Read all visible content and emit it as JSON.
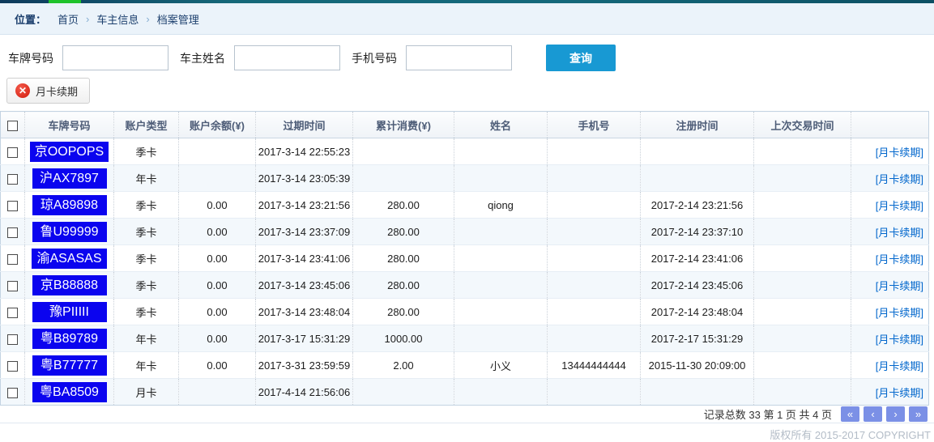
{
  "breadcrumb": {
    "label": "位置：",
    "separator": "›",
    "items": [
      "首页",
      "车主信息",
      "档案管理"
    ]
  },
  "search": {
    "fields": [
      {
        "label": "车牌号码",
        "value": ""
      },
      {
        "label": "车主姓名",
        "value": ""
      },
      {
        "label": "手机号码",
        "value": ""
      }
    ],
    "query_button": "查询"
  },
  "toolbar": {
    "renew_button": "月卡续期",
    "renew_icon": "x-in-red-circle"
  },
  "table": {
    "headers": [
      "车牌号码",
      "账户类型",
      "账户余额(¥)",
      "过期时间",
      "累计消费(¥)",
      "姓名",
      "手机号",
      "注册时间",
      "上次交易时间"
    ],
    "action_label": "[月卡续期]",
    "rows": [
      {
        "plate": "京OOPOPS",
        "type": "季卡",
        "balance": "",
        "expire": "2017-3-14 22:55:23",
        "consumed": "",
        "name": "",
        "phone": "",
        "registered": "",
        "last_trade": ""
      },
      {
        "plate": "沪AX7897",
        "type": "年卡",
        "balance": "",
        "expire": "2017-3-14 23:05:39",
        "consumed": "",
        "name": "",
        "phone": "",
        "registered": "",
        "last_trade": ""
      },
      {
        "plate": "琼A89898",
        "type": "季卡",
        "balance": "0.00",
        "expire": "2017-3-14 23:21:56",
        "consumed": "280.00",
        "name": "qiong",
        "phone": "",
        "registered": "2017-2-14 23:21:56",
        "last_trade": ""
      },
      {
        "plate": "鲁U99999",
        "type": "季卡",
        "balance": "0.00",
        "expire": "2017-3-14 23:37:09",
        "consumed": "280.00",
        "name": "",
        "phone": "",
        "registered": "2017-2-14 23:37:10",
        "last_trade": ""
      },
      {
        "plate": "渝ASASAS",
        "type": "季卡",
        "balance": "0.00",
        "expire": "2017-3-14 23:41:06",
        "consumed": "280.00",
        "name": "",
        "phone": "",
        "registered": "2017-2-14 23:41:06",
        "last_trade": ""
      },
      {
        "plate": "京B88888",
        "type": "季卡",
        "balance": "0.00",
        "expire": "2017-3-14 23:45:06",
        "consumed": "280.00",
        "name": "",
        "phone": "",
        "registered": "2017-2-14 23:45:06",
        "last_trade": ""
      },
      {
        "plate": "豫PIIIII",
        "type": "季卡",
        "balance": "0.00",
        "expire": "2017-3-14 23:48:04",
        "consumed": "280.00",
        "name": "",
        "phone": "",
        "registered": "2017-2-14 23:48:04",
        "last_trade": ""
      },
      {
        "plate": "粤B89789",
        "type": "年卡",
        "balance": "0.00",
        "expire": "2017-3-17 15:31:29",
        "consumed": "1000.00",
        "name": "",
        "phone": "",
        "registered": "2017-2-17 15:31:29",
        "last_trade": ""
      },
      {
        "plate": "粤B77777",
        "type": "年卡",
        "balance": "0.00",
        "expire": "2017-3-31 23:59:59",
        "consumed": "2.00",
        "name": "小义",
        "phone": "13444444444",
        "registered": "2015-11-30 20:09:00",
        "last_trade": ""
      },
      {
        "plate": "粤BA8509",
        "type": "月卡",
        "balance": "",
        "expire": "2017-4-14 21:56:06",
        "consumed": "",
        "name": "",
        "phone": "",
        "registered": "",
        "last_trade": ""
      }
    ]
  },
  "pagination": {
    "summary": "记录总数 33 第 1 页 共 4 页",
    "buttons": [
      {
        "name": "first",
        "glyph": "«"
      },
      {
        "name": "prev",
        "glyph": "‹"
      },
      {
        "name": "next",
        "glyph": "›"
      },
      {
        "name": "last",
        "glyph": "»"
      }
    ]
  },
  "footer": {
    "copyright": "版权所有 2015-2017 COPYRIGHT"
  },
  "colors": {
    "plate_blue": "#0b04ef",
    "query_button_blue": "#1899d3",
    "pagination_button_blue": "#7b90e6",
    "renew_icon_red": "#d21d0e",
    "link_blue": "#0066cc",
    "topbar_green": "#1fc32b"
  }
}
